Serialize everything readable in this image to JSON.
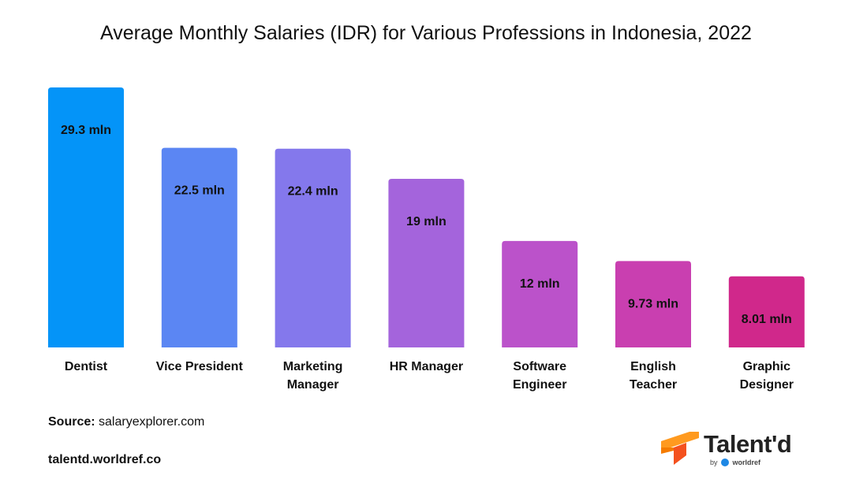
{
  "chart_data": {
    "type": "bar",
    "title": "Average Monthly Salaries (IDR) for Various Professions in Indonesia, 2022",
    "xlabel": "",
    "ylabel": "",
    "ylim": [
      0,
      29.3
    ],
    "grid": false,
    "legend": "none",
    "categories": [
      [
        "Dentist"
      ],
      [
        "Vice President"
      ],
      [
        "Marketing",
        "Manager"
      ],
      [
        "HR Manager"
      ],
      [
        "Software",
        "Engineer"
      ],
      [
        "English",
        "Teacher"
      ],
      [
        "Graphic",
        "Designer"
      ]
    ],
    "values": [
      29.3,
      22.5,
      22.4,
      19,
      12,
      9.73,
      8.01
    ],
    "value_labels": [
      "29.3 mln",
      "22.5 mln",
      "22.4 mln",
      "19 mln",
      "12 mln",
      "9.73 mln",
      "8.01 mln"
    ],
    "colors": [
      "#0494f8",
      "#5b86f3",
      "#8478ec",
      "#a464dc",
      "#bb52ca",
      "#c93fb0",
      "#d0288b"
    ]
  },
  "footer": {
    "source_label": "Source:",
    "source_value": "salaryexplorer.com",
    "site": "talentd.worldref.co"
  },
  "brand": {
    "name": "Talent'd",
    "by": "by",
    "parent": "worldref",
    "logo_colors": [
      "#ff9a1f",
      "#f4511e"
    ]
  }
}
